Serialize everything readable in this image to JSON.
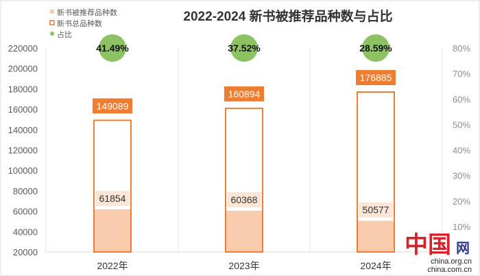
{
  "chart_data": {
    "type": "bar",
    "title": "2022-2024  新书被推荐品种数与占比",
    "categories": [
      "2022年",
      "2023年",
      "2024年"
    ],
    "series": [
      {
        "name": "新书被推荐品种数",
        "values": [
          61854,
          60368,
          50577
        ],
        "color": "#f8cbad"
      },
      {
        "name": "新书总品种数",
        "values": [
          149089,
          160894,
          176885
        ],
        "color": "#ed7d31"
      },
      {
        "name": "占比",
        "values": [
          41.49,
          37.52,
          28.59
        ],
        "labels": [
          "41.49%",
          "37.52%",
          "28.59%"
        ],
        "color": "#8dc262"
      }
    ],
    "ylim": [
      20000,
      220000
    ],
    "yticks": [
      "20000",
      "40000",
      "60000",
      "80000",
      "100000",
      "120000",
      "140000",
      "160000",
      "180000",
      "200000",
      "220000"
    ],
    "y2lim": [
      0,
      80
    ],
    "y2ticks": [
      "10%",
      "20%",
      "30%",
      "40%",
      "50%",
      "60%",
      "70%",
      "80%"
    ],
    "legend": "top-left"
  },
  "watermark": {
    "text1": "中国网",
    "text2": "china.org.cn",
    "text3": "china.com.cn"
  }
}
